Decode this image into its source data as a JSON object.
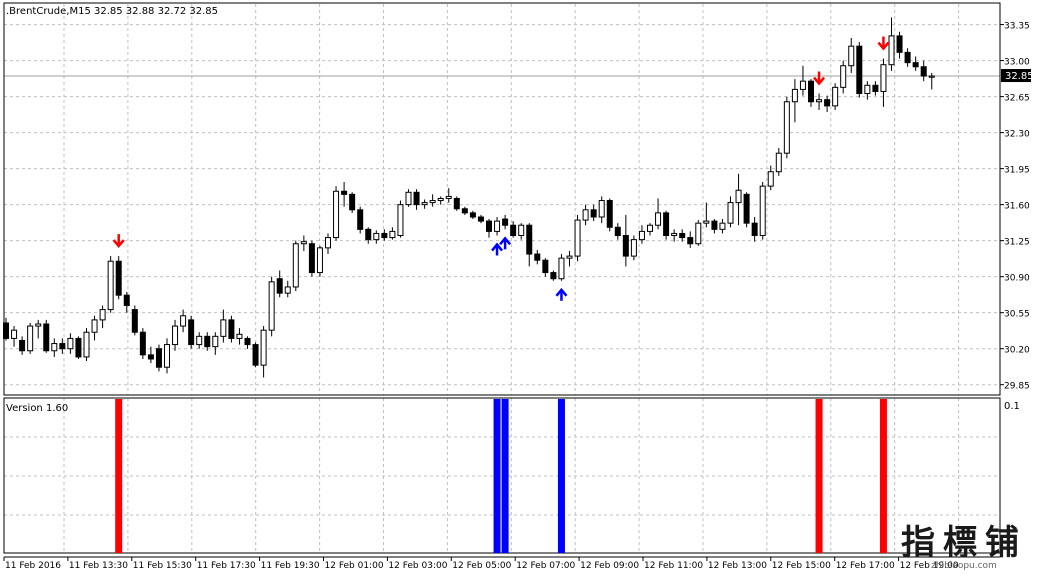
{
  "header": {
    "symbol_line": ".BrentCrude,M15  32.85 32.88 32.72 32.85"
  },
  "indicator": {
    "label": "Version 1.60",
    "axis_label": "0.1"
  },
  "price_badge": "32.85",
  "watermark": {
    "main": "指標铺",
    "sub": "zhibiaopu.com"
  },
  "colors": {
    "bear": "#000000",
    "bull": "#ffffff",
    "sell_signal": "#ff0000",
    "buy_signal": "#0000ff",
    "grid": "#c0c0c0",
    "badge_bg": "#000000",
    "badge_text": "#ffffff"
  },
  "chart_data": {
    "type": "candlestick",
    "instrument": ".BrentCrude",
    "timeframe": "M15",
    "current_price": 32.85,
    "y_ticks": [
      33.35,
      33.0,
      32.65,
      32.3,
      31.95,
      31.6,
      31.25,
      30.9,
      30.55,
      30.2,
      29.85
    ],
    "ylim": [
      29.75,
      33.55
    ],
    "x_tick_labels": [
      "11 Feb 2016",
      "11 Feb 13:30",
      "11 Feb 15:30",
      "11 Feb 17:30",
      "11 Feb 19:30",
      "12 Feb 01:00",
      "12 Feb 03:00",
      "12 Feb 05:00",
      "12 Feb 07:00",
      "12 Feb 09:00",
      "12 Feb 11:00",
      "12 Feb 13:00",
      "12 Feb 15:00",
      "12 Feb 17:00",
      "12 Feb 19:00"
    ],
    "candles": [
      {
        "o": 30.45,
        "h": 30.5,
        "l": 30.28,
        "c": 30.3
      },
      {
        "o": 30.3,
        "h": 30.42,
        "l": 30.22,
        "c": 30.38
      },
      {
        "o": 30.28,
        "h": 30.32,
        "l": 30.14,
        "c": 30.18
      },
      {
        "o": 30.18,
        "h": 30.45,
        "l": 30.15,
        "c": 30.42
      },
      {
        "o": 30.42,
        "h": 30.48,
        "l": 30.3,
        "c": 30.44
      },
      {
        "o": 30.44,
        "h": 30.48,
        "l": 30.16,
        "c": 30.18
      },
      {
        "o": 30.18,
        "h": 30.3,
        "l": 30.12,
        "c": 30.25
      },
      {
        "o": 30.25,
        "h": 30.3,
        "l": 30.15,
        "c": 30.2
      },
      {
        "o": 30.2,
        "h": 30.35,
        "l": 30.15,
        "c": 30.3
      },
      {
        "o": 30.3,
        "h": 30.32,
        "l": 30.1,
        "c": 30.12
      },
      {
        "o": 30.12,
        "h": 30.4,
        "l": 30.08,
        "c": 30.36
      },
      {
        "o": 30.36,
        "h": 30.52,
        "l": 30.28,
        "c": 30.48
      },
      {
        "o": 30.48,
        "h": 30.62,
        "l": 30.4,
        "c": 30.58
      },
      {
        "o": 30.58,
        "h": 31.1,
        "l": 30.55,
        "c": 31.05
      },
      {
        "o": 31.05,
        "h": 31.1,
        "l": 30.68,
        "c": 30.72
      },
      {
        "o": 30.72,
        "h": 30.75,
        "l": 30.55,
        "c": 30.62
      },
      {
        "o": 30.58,
        "h": 30.62,
        "l": 30.33,
        "c": 30.36
      },
      {
        "o": 30.36,
        "h": 30.4,
        "l": 30.1,
        "c": 30.14
      },
      {
        "o": 30.14,
        "h": 30.22,
        "l": 30.06,
        "c": 30.1
      },
      {
        "o": 30.2,
        "h": 30.24,
        "l": 29.98,
        "c": 30.02
      },
      {
        "o": 30.02,
        "h": 30.3,
        "l": 29.96,
        "c": 30.24
      },
      {
        "o": 30.24,
        "h": 30.48,
        "l": 30.18,
        "c": 30.42
      },
      {
        "o": 30.42,
        "h": 30.58,
        "l": 30.36,
        "c": 30.52
      },
      {
        "o": 30.48,
        "h": 30.52,
        "l": 30.2,
        "c": 30.24
      },
      {
        "o": 30.24,
        "h": 30.36,
        "l": 30.2,
        "c": 30.32
      },
      {
        "o": 30.32,
        "h": 30.36,
        "l": 30.18,
        "c": 30.22
      },
      {
        "o": 30.22,
        "h": 30.36,
        "l": 30.14,
        "c": 30.32
      },
      {
        "o": 30.32,
        "h": 30.58,
        "l": 30.26,
        "c": 30.48
      },
      {
        "o": 30.48,
        "h": 30.52,
        "l": 30.26,
        "c": 30.3
      },
      {
        "o": 30.3,
        "h": 30.4,
        "l": 30.24,
        "c": 30.34
      },
      {
        "o": 30.3,
        "h": 30.32,
        "l": 30.2,
        "c": 30.24
      },
      {
        "o": 30.24,
        "h": 30.26,
        "l": 30.02,
        "c": 30.04
      },
      {
        "o": 30.04,
        "h": 30.42,
        "l": 29.92,
        "c": 30.38
      },
      {
        "o": 30.38,
        "h": 30.9,
        "l": 30.32,
        "c": 30.85
      },
      {
        "o": 30.88,
        "h": 30.96,
        "l": 30.7,
        "c": 30.74
      },
      {
        "o": 30.74,
        "h": 30.86,
        "l": 30.7,
        "c": 30.8
      },
      {
        "o": 30.8,
        "h": 31.25,
        "l": 30.76,
        "c": 31.22
      },
      {
        "o": 31.22,
        "h": 31.3,
        "l": 31.15,
        "c": 31.24
      },
      {
        "o": 31.22,
        "h": 31.25,
        "l": 30.9,
        "c": 30.94
      },
      {
        "o": 30.94,
        "h": 31.2,
        "l": 30.9,
        "c": 31.18
      },
      {
        "o": 31.18,
        "h": 31.32,
        "l": 31.12,
        "c": 31.28
      },
      {
        "o": 31.28,
        "h": 31.78,
        "l": 31.25,
        "c": 31.73
      },
      {
        "o": 31.73,
        "h": 31.82,
        "l": 31.58,
        "c": 31.7
      },
      {
        "o": 31.7,
        "h": 31.72,
        "l": 31.52,
        "c": 31.55
      },
      {
        "o": 31.55,
        "h": 31.58,
        "l": 31.32,
        "c": 31.36
      },
      {
        "o": 31.36,
        "h": 31.38,
        "l": 31.22,
        "c": 31.26
      },
      {
        "o": 31.26,
        "h": 31.35,
        "l": 31.22,
        "c": 31.32
      },
      {
        "o": 31.32,
        "h": 31.36,
        "l": 31.25,
        "c": 31.28
      },
      {
        "o": 31.28,
        "h": 31.38,
        "l": 31.26,
        "c": 31.34
      },
      {
        "o": 31.3,
        "h": 31.64,
        "l": 31.28,
        "c": 31.6
      },
      {
        "o": 31.6,
        "h": 31.75,
        "l": 31.58,
        "c": 31.72
      },
      {
        "o": 31.72,
        "h": 31.75,
        "l": 31.55,
        "c": 31.6
      },
      {
        "o": 31.6,
        "h": 31.65,
        "l": 31.56,
        "c": 31.62
      },
      {
        "o": 31.62,
        "h": 31.7,
        "l": 31.58,
        "c": 31.64
      },
      {
        "o": 31.64,
        "h": 31.68,
        "l": 31.6,
        "c": 31.66
      },
      {
        "o": 31.66,
        "h": 31.76,
        "l": 31.62,
        "c": 31.68
      },
      {
        "o": 31.66,
        "h": 31.68,
        "l": 31.54,
        "c": 31.56
      },
      {
        "o": 31.56,
        "h": 31.58,
        "l": 31.5,
        "c": 31.52
      },
      {
        "o": 31.52,
        "h": 31.54,
        "l": 31.46,
        "c": 31.48
      },
      {
        "o": 31.48,
        "h": 31.5,
        "l": 31.42,
        "c": 31.44
      },
      {
        "o": 31.44,
        "h": 31.46,
        "l": 31.28,
        "c": 31.34
      },
      {
        "o": 31.34,
        "h": 31.48,
        "l": 31.3,
        "c": 31.44
      },
      {
        "o": 31.46,
        "h": 31.5,
        "l": 31.36,
        "c": 31.4
      },
      {
        "o": 31.4,
        "h": 31.44,
        "l": 31.28,
        "c": 31.3
      },
      {
        "o": 31.3,
        "h": 31.42,
        "l": 31.26,
        "c": 31.4
      },
      {
        "o": 31.4,
        "h": 31.42,
        "l": 31.0,
        "c": 31.12
      },
      {
        "o": 31.12,
        "h": 31.16,
        "l": 31.02,
        "c": 31.06
      },
      {
        "o": 31.06,
        "h": 31.08,
        "l": 30.9,
        "c": 30.94
      },
      {
        "o": 30.94,
        "h": 30.96,
        "l": 30.86,
        "c": 30.88
      },
      {
        "o": 30.88,
        "h": 31.12,
        "l": 30.86,
        "c": 31.08
      },
      {
        "o": 31.08,
        "h": 31.15,
        "l": 31.0,
        "c": 31.1
      },
      {
        "o": 31.1,
        "h": 31.5,
        "l": 31.05,
        "c": 31.45
      },
      {
        "o": 31.45,
        "h": 31.6,
        "l": 31.4,
        "c": 31.55
      },
      {
        "o": 31.55,
        "h": 31.6,
        "l": 31.44,
        "c": 31.48
      },
      {
        "o": 31.48,
        "h": 31.68,
        "l": 31.42,
        "c": 31.64
      },
      {
        "o": 31.64,
        "h": 31.66,
        "l": 31.34,
        "c": 31.38
      },
      {
        "o": 31.38,
        "h": 31.42,
        "l": 31.26,
        "c": 31.3
      },
      {
        "o": 31.3,
        "h": 31.5,
        "l": 31.0,
        "c": 31.1
      },
      {
        "o": 31.1,
        "h": 31.3,
        "l": 31.06,
        "c": 31.26
      },
      {
        "o": 31.26,
        "h": 31.4,
        "l": 31.22,
        "c": 31.34
      },
      {
        "o": 31.34,
        "h": 31.42,
        "l": 31.3,
        "c": 31.4
      },
      {
        "o": 31.4,
        "h": 31.66,
        "l": 31.36,
        "c": 31.52
      },
      {
        "o": 31.52,
        "h": 31.54,
        "l": 31.26,
        "c": 31.3
      },
      {
        "o": 31.3,
        "h": 31.36,
        "l": 31.24,
        "c": 31.32
      },
      {
        "o": 31.32,
        "h": 31.36,
        "l": 31.24,
        "c": 31.28
      },
      {
        "o": 31.28,
        "h": 31.34,
        "l": 31.18,
        "c": 31.22
      },
      {
        "o": 31.22,
        "h": 31.45,
        "l": 31.2,
        "c": 31.42
      },
      {
        "o": 31.42,
        "h": 31.62,
        "l": 31.38,
        "c": 31.44
      },
      {
        "o": 31.44,
        "h": 31.46,
        "l": 31.32,
        "c": 31.36
      },
      {
        "o": 31.36,
        "h": 31.46,
        "l": 31.32,
        "c": 31.42
      },
      {
        "o": 31.42,
        "h": 31.68,
        "l": 31.38,
        "c": 31.62
      },
      {
        "o": 31.62,
        "h": 31.9,
        "l": 31.4,
        "c": 31.74
      },
      {
        "o": 31.7,
        "h": 31.72,
        "l": 31.38,
        "c": 31.42
      },
      {
        "o": 31.42,
        "h": 31.48,
        "l": 31.24,
        "c": 31.3
      },
      {
        "o": 31.3,
        "h": 31.82,
        "l": 31.26,
        "c": 31.78
      },
      {
        "o": 31.78,
        "h": 31.98,
        "l": 31.74,
        "c": 31.92
      },
      {
        "o": 31.92,
        "h": 32.15,
        "l": 31.88,
        "c": 32.1
      },
      {
        "o": 32.1,
        "h": 32.65,
        "l": 32.05,
        "c": 32.6
      },
      {
        "o": 32.6,
        "h": 32.82,
        "l": 32.4,
        "c": 32.72
      },
      {
        "o": 32.72,
        "h": 32.95,
        "l": 32.66,
        "c": 32.8
      },
      {
        "o": 32.8,
        "h": 32.82,
        "l": 32.55,
        "c": 32.6
      },
      {
        "o": 32.6,
        "h": 32.68,
        "l": 32.52,
        "c": 32.62
      },
      {
        "o": 32.62,
        "h": 32.66,
        "l": 32.5,
        "c": 32.56
      },
      {
        "o": 32.56,
        "h": 32.78,
        "l": 32.52,
        "c": 32.74
      },
      {
        "o": 32.74,
        "h": 33.0,
        "l": 32.68,
        "c": 32.95
      },
      {
        "o": 32.95,
        "h": 33.22,
        "l": 32.88,
        "c": 33.14
      },
      {
        "o": 33.14,
        "h": 33.18,
        "l": 32.64,
        "c": 32.68
      },
      {
        "o": 32.68,
        "h": 32.8,
        "l": 32.62,
        "c": 32.76
      },
      {
        "o": 32.76,
        "h": 32.8,
        "l": 32.66,
        "c": 32.7
      },
      {
        "o": 32.7,
        "h": 33.02,
        "l": 32.55,
        "c": 32.96
      },
      {
        "o": 32.96,
        "h": 33.42,
        "l": 32.9,
        "c": 33.24
      },
      {
        "o": 33.24,
        "h": 33.28,
        "l": 33.02,
        "c": 33.08
      },
      {
        "o": 33.08,
        "h": 33.12,
        "l": 32.94,
        "c": 32.98
      },
      {
        "o": 32.98,
        "h": 33.04,
        "l": 32.9,
        "c": 32.94
      },
      {
        "o": 32.94,
        "h": 33.0,
        "l": 32.8,
        "c": 32.85
      },
      {
        "o": 32.85,
        "h": 32.88,
        "l": 32.72,
        "c": 32.85
      }
    ],
    "signals": [
      {
        "bar": 14,
        "type": "sell"
      },
      {
        "bar": 61,
        "type": "buy"
      },
      {
        "bar": 62,
        "type": "buy"
      },
      {
        "bar": 69,
        "type": "buy"
      },
      {
        "bar": 101,
        "type": "sell"
      },
      {
        "bar": 109,
        "type": "sell"
      }
    ]
  }
}
